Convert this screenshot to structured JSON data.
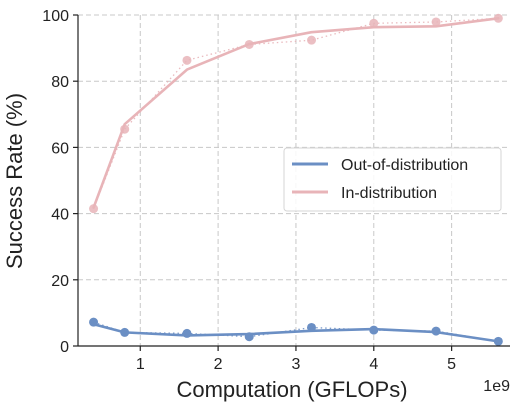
{
  "chart_data": {
    "type": "line",
    "xlabel": "Computation (GFLOPs)",
    "ylabel": "Success Rate (%)",
    "x_offset_label": "1e9",
    "xlim": [
      0.2,
      5.75
    ],
    "ylim": [
      0,
      100
    ],
    "xticks": [
      1,
      2,
      3,
      4,
      5
    ],
    "yticks": [
      0,
      20,
      40,
      60,
      80,
      100
    ],
    "grid": true,
    "legend_position": "center-right",
    "series": [
      {
        "name": "Out-of-distribution",
        "color": "#6b8fc4",
        "points": [
          [
            0.4,
            7.2
          ],
          [
            0.8,
            4.1
          ],
          [
            1.6,
            3.8
          ],
          [
            2.4,
            2.8
          ],
          [
            3.2,
            5.6
          ],
          [
            4.0,
            4.8
          ],
          [
            4.8,
            4.5
          ],
          [
            5.6,
            1.4
          ]
        ],
        "trend": [
          [
            0.4,
            6.6
          ],
          [
            0.8,
            4.1
          ],
          [
            1.6,
            3.2
          ],
          [
            2.4,
            3.6
          ],
          [
            3.2,
            4.6
          ],
          [
            4.0,
            5.1
          ],
          [
            4.8,
            4.2
          ],
          [
            5.6,
            1.4
          ]
        ]
      },
      {
        "name": "In-distribution",
        "color": "#e8b4b8",
        "points": [
          [
            0.4,
            41.5
          ],
          [
            0.8,
            65.5
          ],
          [
            1.6,
            86.3
          ],
          [
            2.4,
            91.1
          ],
          [
            3.2,
            92.4
          ],
          [
            4.0,
            97.5
          ],
          [
            4.8,
            97.9
          ],
          [
            5.6,
            99.0
          ]
        ],
        "trend": [
          [
            0.4,
            41.8
          ],
          [
            0.8,
            67.0
          ],
          [
            1.6,
            83.5
          ],
          [
            2.4,
            91.2
          ],
          [
            3.2,
            94.8
          ],
          [
            4.0,
            96.3
          ],
          [
            4.8,
            96.6
          ],
          [
            5.6,
            99.0
          ]
        ]
      }
    ]
  }
}
